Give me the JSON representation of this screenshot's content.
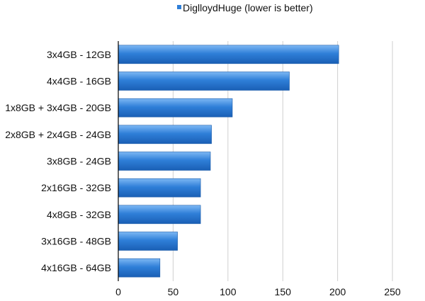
{
  "chart_data": {
    "type": "bar",
    "orientation": "horizontal",
    "categories": [
      "3x4GB - 12GB",
      "4x4GB - 16GB",
      "1x8GB + 3x4GB - 20GB",
      "2x8GB + 2x4GB - 24GB",
      "3x8GB - 24GB",
      "2x16GB - 32GB",
      "4x8GB - 32GB",
      "3x16GB - 48GB",
      "4x16GB - 64GB"
    ],
    "series": [
      {
        "name": "DiglloydHuge (lower is better)",
        "values": [
          201,
          156,
          104,
          85,
          84,
          75,
          75,
          54,
          38
        ],
        "color": "#2f7fd8"
      }
    ],
    "xlim": [
      0,
      270
    ],
    "xticks": [
      0,
      50,
      100,
      150,
      200,
      250
    ],
    "grid": true,
    "legend_position": "top-center"
  }
}
